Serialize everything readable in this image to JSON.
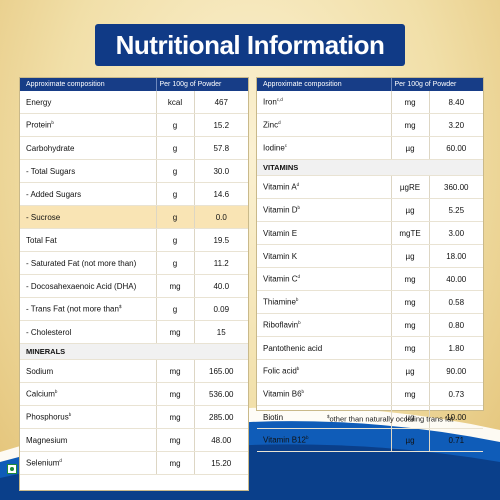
{
  "title": "Nutritional Information",
  "header": {
    "col1": "Approximate composition",
    "col2": "Per 100g of Powder"
  },
  "left_rows": [
    {
      "type": "row",
      "name": "Energy",
      "sup": "",
      "unit": "kcal",
      "value": "467"
    },
    {
      "type": "row",
      "name": "Protein",
      "sup": "b",
      "unit": "g",
      "value": "15.2"
    },
    {
      "type": "row",
      "name": "Carbohydrate",
      "sup": "",
      "unit": "g",
      "value": "57.8"
    },
    {
      "type": "row",
      "name": "- Total Sugars",
      "sup": "",
      "unit": "g",
      "value": "30.0"
    },
    {
      "type": "row",
      "name": "- Added Sugars",
      "sup": "",
      "unit": "g",
      "value": "14.6"
    },
    {
      "type": "row",
      "name": "- Sucrose",
      "sup": "",
      "unit": "g",
      "value": "0.0",
      "highlight": true
    },
    {
      "type": "row",
      "name": "Total Fat",
      "sup": "",
      "unit": "g",
      "value": "19.5"
    },
    {
      "type": "row",
      "name": "- Saturated Fat (not more than)",
      "sup": "",
      "unit": "g",
      "value": "11.2"
    },
    {
      "type": "row",
      "name": "- Docosahexaenoic Acid (DHA)",
      "sup": "",
      "unit": "mg",
      "value": "40.0"
    },
    {
      "type": "row",
      "name": "- Trans Fat (not more than",
      "sup": "$",
      "unit": "g",
      "value": "0.09"
    },
    {
      "type": "row",
      "name": "- Cholesterol",
      "sup": "",
      "unit": "mg",
      "value": "15"
    },
    {
      "type": "section",
      "name": "MINERALS"
    },
    {
      "type": "row",
      "name": "Sodium",
      "sup": "",
      "unit": "mg",
      "value": "165.00"
    },
    {
      "type": "row",
      "name": "Calcium",
      "sup": "b",
      "unit": "mg",
      "value": "536.00"
    },
    {
      "type": "row",
      "name": "Phosphorus",
      "sup": "b",
      "unit": "mg",
      "value": "285.00"
    },
    {
      "type": "row",
      "name": "Magnesium",
      "sup": "",
      "unit": "mg",
      "value": "48.00"
    },
    {
      "type": "row",
      "name": "Selenium",
      "sup": "d",
      "unit": "mg",
      "value": "15.20"
    }
  ],
  "right_rows": [
    {
      "type": "row",
      "name": "Iron",
      "sup": "c,d",
      "unit": "mg",
      "value": "8.40"
    },
    {
      "type": "row",
      "name": "Zinc",
      "sup": "d",
      "unit": "mg",
      "value": "3.20"
    },
    {
      "type": "row",
      "name": "Iodine",
      "sup": "c",
      "unit": "µg",
      "value": "60.00"
    },
    {
      "type": "section",
      "name": "VITAMINS"
    },
    {
      "type": "row",
      "name": "Vitamin A",
      "sup": "d",
      "unit": "µgRE",
      "value": "360.00"
    },
    {
      "type": "row",
      "name": "Vitamin D",
      "sup": "b",
      "unit": "µg",
      "value": "5.25"
    },
    {
      "type": "row",
      "name": "Vitamin E",
      "sup": "",
      "unit": "mgTE",
      "value": "3.00"
    },
    {
      "type": "row",
      "name": "Vitamin K",
      "sup": "",
      "unit": "µg",
      "value": "18.00"
    },
    {
      "type": "row",
      "name": "Vitamin C",
      "sup": "d",
      "unit": "mg",
      "value": "40.00"
    },
    {
      "type": "row",
      "name": "Thiamine",
      "sup": "b",
      "unit": "mg",
      "value": "0.58"
    },
    {
      "type": "row",
      "name": "Riboflavin",
      "sup": "b",
      "unit": "mg",
      "value": "0.80"
    },
    {
      "type": "row",
      "name": "Pantothenic acid",
      "sup": "",
      "unit": "mg",
      "value": "1.80"
    },
    {
      "type": "row",
      "name": "Folic acid",
      "sup": "b",
      "unit": "µg",
      "value": "90.00"
    },
    {
      "type": "row",
      "name": "Vitamin B6",
      "sup": "b",
      "unit": "mg",
      "value": "0.73"
    },
    {
      "type": "row",
      "name": "Biotin",
      "sup": "",
      "unit": "µg",
      "value": "10.00"
    },
    {
      "type": "row",
      "name": "Vitamin B12",
      "sup": "b",
      "unit": "µg",
      "value": "0.71"
    }
  ],
  "footnote": {
    "sup": "$",
    "text": "other than naturally occuring trans fat"
  },
  "colors": {
    "navy": "#103a86",
    "cream": "#f1dfa8",
    "highlight": "#f9e4b4",
    "veg_green": "#1e8a3a"
  },
  "icons": {
    "veg_mark": "veg-symbol-icon"
  }
}
